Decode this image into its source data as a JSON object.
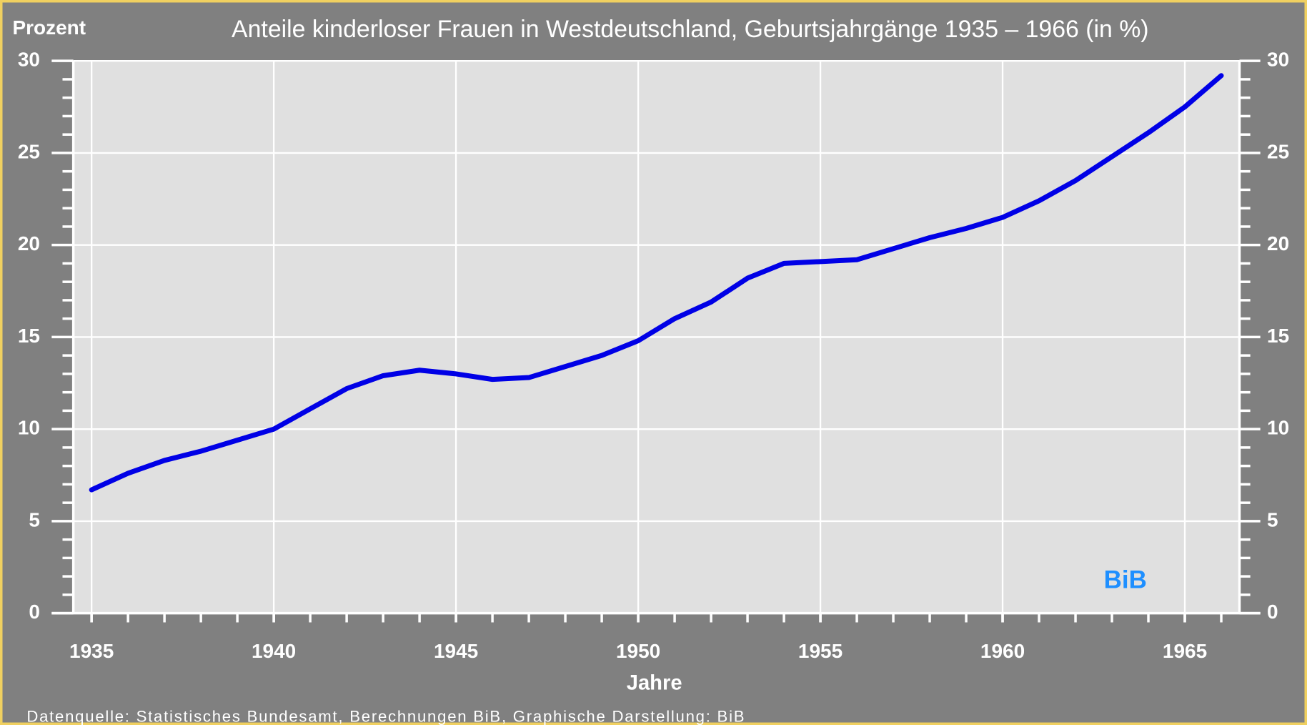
{
  "chart_data": {
    "type": "line",
    "title": "Anteile kinderloser Frauen in Westdeutschland, Geburtsjahrgänge 1935 – 1966 (in %)",
    "y_label": "Prozent",
    "x_label": "Jahre",
    "source": "Datenquelle: Statistisches Bundesamt, Berechnungen BiB, Graphische Darstellung: BiB",
    "logo": "BiB",
    "x": [
      1935,
      1936,
      1937,
      1938,
      1939,
      1940,
      1941,
      1942,
      1943,
      1944,
      1945,
      1946,
      1947,
      1948,
      1949,
      1950,
      1951,
      1952,
      1953,
      1954,
      1955,
      1956,
      1957,
      1958,
      1959,
      1960,
      1961,
      1962,
      1963,
      1964,
      1965,
      1966
    ],
    "series": [
      {
        "name": "Anteil kinderloser Frauen",
        "color": "#0000e6",
        "values": [
          6.7,
          7.6,
          8.3,
          8.8,
          9.4,
          10.0,
          11.1,
          12.2,
          12.9,
          13.2,
          13.0,
          12.7,
          12.8,
          13.4,
          14.0,
          14.8,
          16.0,
          16.9,
          18.2,
          19.0,
          19.1,
          19.2,
          19.8,
          20.4,
          20.9,
          21.5,
          22.4,
          23.5,
          24.8,
          26.1,
          27.5,
          29.2
        ]
      }
    ],
    "xlim": [
      1934.5,
      1966.5
    ],
    "xticks": [
      1935,
      1940,
      1945,
      1950,
      1955,
      1960,
      1965
    ],
    "ylim": [
      0,
      30
    ],
    "yticks": [
      0,
      5,
      10,
      15,
      20,
      25,
      30
    ],
    "grid": true,
    "right_axis": true
  }
}
